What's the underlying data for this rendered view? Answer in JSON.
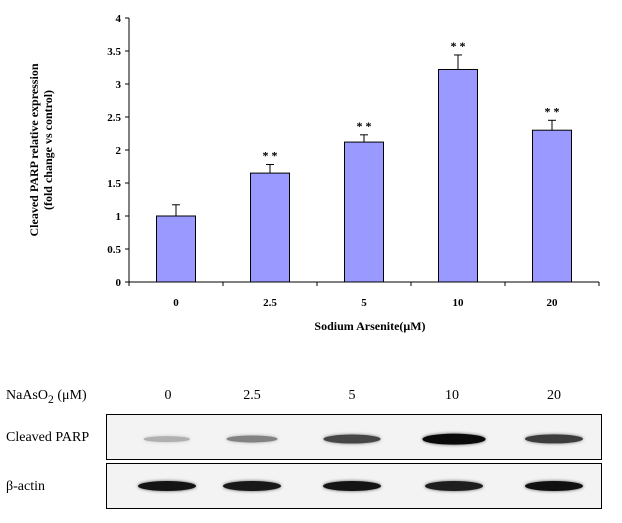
{
  "chart_data": {
    "type": "bar",
    "categories": [
      "0",
      "2.5",
      "5",
      "10",
      "20"
    ],
    "values": [
      1.0,
      1.65,
      2.12,
      3.22,
      2.3
    ],
    "errors": [
      0.17,
      0.13,
      0.11,
      0.22,
      0.15
    ],
    "significance": [
      "",
      "* *",
      "* *",
      "* *",
      "* *"
    ],
    "ylabel_line1": "Cleaved PARP relative expression",
    "ylabel_line2": "(fold change vs control)",
    "xlabel": "Sodium Arsenite(μM)",
    "ylim": [
      0,
      4
    ],
    "yticks": [
      "0",
      "0.5",
      "1",
      "1.5",
      "2",
      "2.5",
      "3",
      "3.5",
      "4"
    ],
    "bar_color": "#9999ff",
    "grid": false
  },
  "blot": {
    "header_label": "NaAsO",
    "header_sub": "2",
    "header_unit": " (μM)",
    "lanes": [
      "0",
      "2.5",
      "5",
      "10",
      "20"
    ],
    "rows": [
      {
        "label": "Cleaved PARP",
        "intensity": [
          0.12,
          0.35,
          0.65,
          0.95,
          0.7
        ]
      },
      {
        "label": "β-actin",
        "intensity": [
          0.9,
          0.88,
          0.9,
          0.85,
          0.92
        ]
      }
    ]
  }
}
